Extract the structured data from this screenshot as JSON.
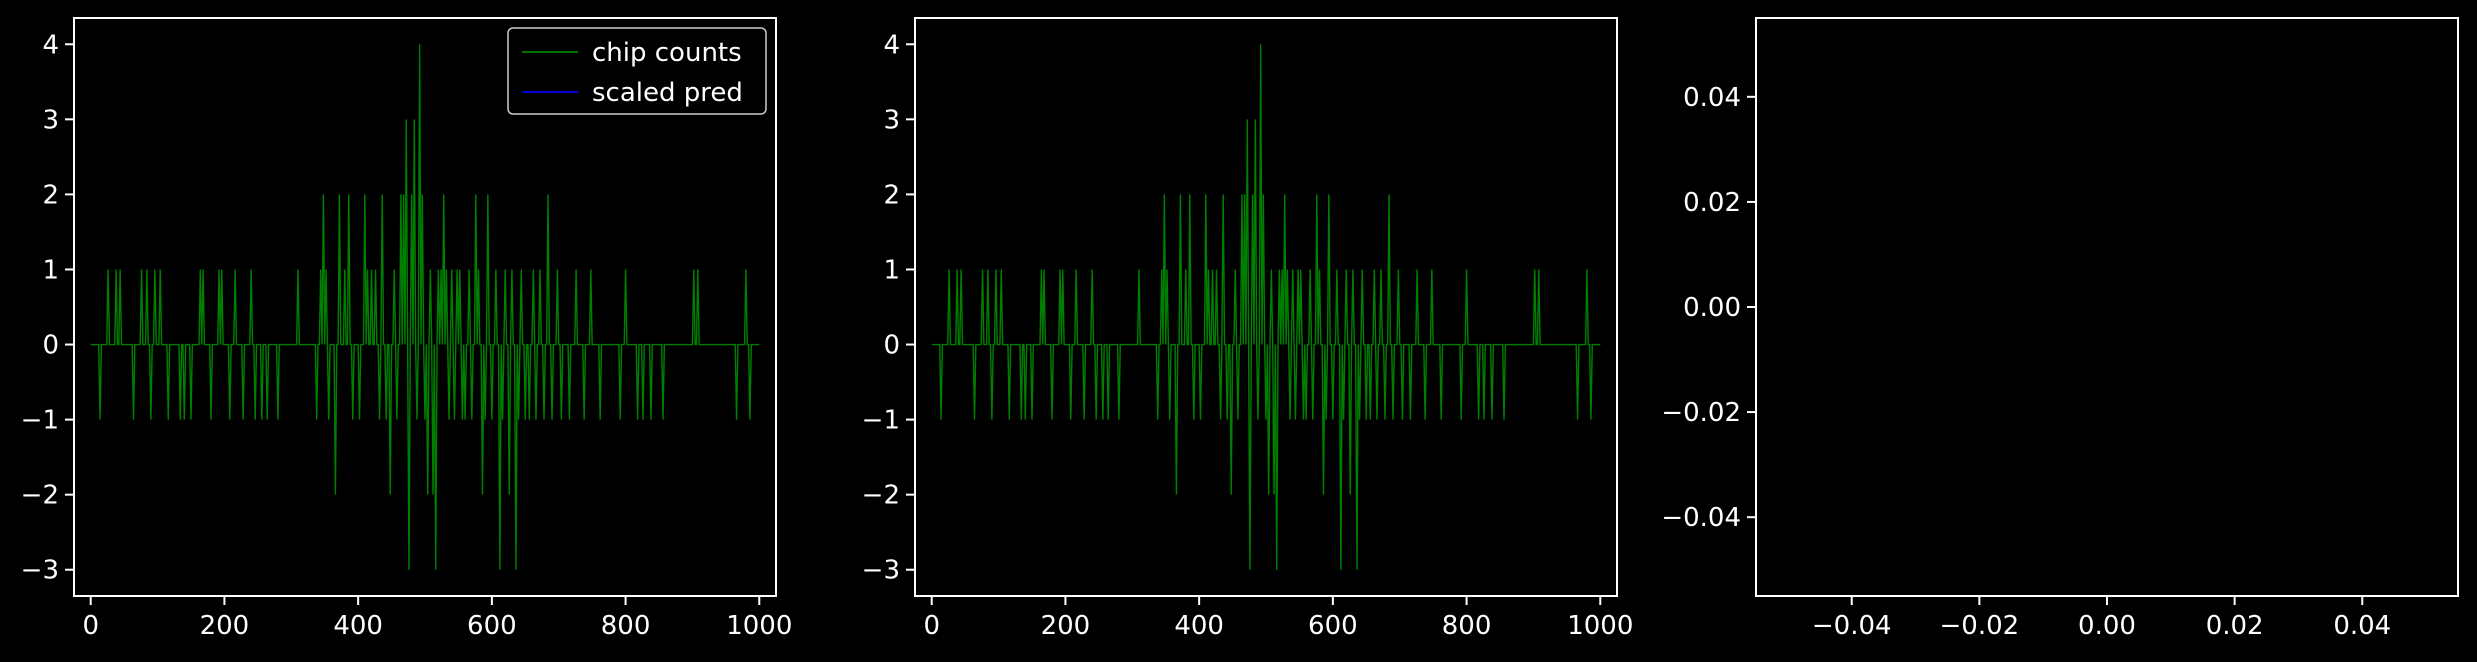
{
  "figure": {
    "background": "#000000",
    "foreground": "#ffffff"
  },
  "chart_data": [
    {
      "type": "line",
      "panel": "left",
      "xlim": [
        -25,
        1025
      ],
      "ylim": [
        -3.35,
        4.35
      ],
      "xticks": [
        0,
        200,
        400,
        600,
        800,
        1000
      ],
      "yticks": [
        -3,
        -2,
        -1,
        0,
        1,
        2,
        3,
        4
      ],
      "xtick_labels": [
        "0",
        "200",
        "400",
        "600",
        "800",
        "1000"
      ],
      "ytick_labels": [
        "−3",
        "−2",
        "−1",
        "0",
        "1",
        "2",
        "3",
        "4"
      ],
      "legend": {
        "position": "top-right",
        "entries": [
          "chip counts",
          "scaled pred"
        ]
      },
      "series": [
        {
          "name": "chip counts",
          "color": "#008000",
          "x_range": [
            0,
            1000
          ],
          "events": [
            [
              14,
              -1
            ],
            [
              26,
              1
            ],
            [
              38,
              1
            ],
            [
              44,
              1
            ],
            [
              64,
              -1
            ],
            [
              76,
              1
            ],
            [
              84,
              1
            ],
            [
              90,
              -1
            ],
            [
              96,
              1
            ],
            [
              104,
              1
            ],
            [
              116,
              -1
            ],
            [
              134,
              -1
            ],
            [
              140,
              -1
            ],
            [
              150,
              -1
            ],
            [
              164,
              1
            ],
            [
              168,
              1
            ],
            [
              180,
              -1
            ],
            [
              192,
              1
            ],
            [
              196,
              1
            ],
            [
              208,
              -1
            ],
            [
              216,
              1
            ],
            [
              228,
              -1
            ],
            [
              240,
              1
            ],
            [
              246,
              -1
            ],
            [
              256,
              -1
            ],
            [
              264,
              -1
            ],
            [
              280,
              -1
            ],
            [
              310,
              1
            ],
            [
              338,
              -1
            ],
            [
              344,
              1
            ],
            [
              348,
              2
            ],
            [
              352,
              1
            ],
            [
              356,
              -1
            ],
            [
              366,
              -2
            ],
            [
              372,
              2
            ],
            [
              380,
              1
            ],
            [
              386,
              2
            ],
            [
              392,
              -1
            ],
            [
              402,
              -1
            ],
            [
              410,
              2
            ],
            [
              414,
              1
            ],
            [
              420,
              1
            ],
            [
              426,
              1
            ],
            [
              432,
              -1
            ],
            [
              436,
              2
            ],
            [
              442,
              -1
            ],
            [
              448,
              -2
            ],
            [
              454,
              1
            ],
            [
              458,
              -1
            ],
            [
              464,
              2
            ],
            [
              468,
              2
            ],
            [
              472,
              3
            ],
            [
              476,
              -3
            ],
            [
              480,
              2
            ],
            [
              484,
              3
            ],
            [
              488,
              -1
            ],
            [
              492,
              4
            ],
            [
              496,
              2
            ],
            [
              500,
              -1
            ],
            [
              504,
              -2
            ],
            [
              508,
              1
            ],
            [
              512,
              -2
            ],
            [
              516,
              -3
            ],
            [
              520,
              1
            ],
            [
              524,
              1
            ],
            [
              528,
              2
            ],
            [
              532,
              1
            ],
            [
              536,
              -1
            ],
            [
              540,
              1
            ],
            [
              544,
              -1
            ],
            [
              548,
              1
            ],
            [
              552,
              1
            ],
            [
              556,
              -1
            ],
            [
              560,
              -1
            ],
            [
              566,
              1
            ],
            [
              570,
              -1
            ],
            [
              576,
              2
            ],
            [
              580,
              1
            ],
            [
              586,
              -2
            ],
            [
              590,
              -1
            ],
            [
              594,
              2
            ],
            [
              600,
              -1
            ],
            [
              606,
              1
            ],
            [
              612,
              -3
            ],
            [
              616,
              -1
            ],
            [
              620,
              1
            ],
            [
              626,
              -2
            ],
            [
              630,
              1
            ],
            [
              636,
              -3
            ],
            [
              640,
              -1
            ],
            [
              644,
              1
            ],
            [
              650,
              -1
            ],
            [
              656,
              -1
            ],
            [
              662,
              1
            ],
            [
              666,
              -1
            ],
            [
              672,
              1
            ],
            [
              678,
              -1
            ],
            [
              684,
              2
            ],
            [
              690,
              -1
            ],
            [
              698,
              1
            ],
            [
              704,
              -1
            ],
            [
              716,
              -1
            ],
            [
              726,
              1
            ],
            [
              738,
              -1
            ],
            [
              748,
              1
            ],
            [
              762,
              -1
            ],
            [
              792,
              -1
            ],
            [
              800,
              1
            ],
            [
              818,
              -1
            ],
            [
              826,
              -1
            ],
            [
              838,
              -1
            ],
            [
              856,
              -1
            ],
            [
              902,
              1
            ],
            [
              908,
              1
            ],
            [
              966,
              -1
            ],
            [
              980,
              1
            ],
            [
              986,
              -1
            ]
          ]
        },
        {
          "name": "scaled pred",
          "color": "#0000ff",
          "x": [],
          "y": []
        }
      ]
    },
    {
      "type": "line",
      "panel": "middle",
      "xlim": [
        -25,
        1025
      ],
      "ylim": [
        -3.35,
        4.35
      ],
      "xticks": [
        0,
        200,
        400,
        600,
        800,
        1000
      ],
      "yticks": [
        -3,
        -2,
        -1,
        0,
        1,
        2,
        3,
        4
      ],
      "xtick_labels": [
        "0",
        "200",
        "400",
        "600",
        "800",
        "1000"
      ],
      "ytick_labels": [
        "−3",
        "−2",
        "−1",
        "0",
        "1",
        "2",
        "3",
        "4"
      ],
      "series": [
        {
          "color": "#008000",
          "x_range": [
            0,
            1000
          ],
          "events": [
            [
              14,
              -1
            ],
            [
              26,
              1
            ],
            [
              38,
              1
            ],
            [
              44,
              1
            ],
            [
              64,
              -1
            ],
            [
              76,
              1
            ],
            [
              84,
              1
            ],
            [
              90,
              -1
            ],
            [
              96,
              1
            ],
            [
              104,
              1
            ],
            [
              116,
              -1
            ],
            [
              134,
              -1
            ],
            [
              140,
              -1
            ],
            [
              150,
              -1
            ],
            [
              164,
              1
            ],
            [
              168,
              1
            ],
            [
              180,
              -1
            ],
            [
              192,
              1
            ],
            [
              196,
              1
            ],
            [
              208,
              -1
            ],
            [
              216,
              1
            ],
            [
              228,
              -1
            ],
            [
              240,
              1
            ],
            [
              246,
              -1
            ],
            [
              256,
              -1
            ],
            [
              264,
              -1
            ],
            [
              280,
              -1
            ],
            [
              310,
              1
            ],
            [
              338,
              -1
            ],
            [
              344,
              1
            ],
            [
              348,
              2
            ],
            [
              352,
              1
            ],
            [
              356,
              -1
            ],
            [
              366,
              -2
            ],
            [
              372,
              2
            ],
            [
              380,
              1
            ],
            [
              386,
              2
            ],
            [
              392,
              -1
            ],
            [
              402,
              -1
            ],
            [
              410,
              2
            ],
            [
              414,
              1
            ],
            [
              420,
              1
            ],
            [
              426,
              1
            ],
            [
              432,
              -1
            ],
            [
              436,
              2
            ],
            [
              442,
              -1
            ],
            [
              448,
              -2
            ],
            [
              454,
              1
            ],
            [
              458,
              -1
            ],
            [
              464,
              2
            ],
            [
              468,
              2
            ],
            [
              472,
              3
            ],
            [
              476,
              -3
            ],
            [
              480,
              2
            ],
            [
              484,
              3
            ],
            [
              488,
              -1
            ],
            [
              492,
              4
            ],
            [
              496,
              2
            ],
            [
              500,
              -1
            ],
            [
              504,
              -2
            ],
            [
              508,
              1
            ],
            [
              512,
              -2
            ],
            [
              516,
              -3
            ],
            [
              520,
              1
            ],
            [
              524,
              1
            ],
            [
              528,
              2
            ],
            [
              532,
              1
            ],
            [
              536,
              -1
            ],
            [
              540,
              1
            ],
            [
              544,
              -1
            ],
            [
              548,
              1
            ],
            [
              552,
              1
            ],
            [
              556,
              -1
            ],
            [
              560,
              -1
            ],
            [
              566,
              1
            ],
            [
              570,
              -1
            ],
            [
              576,
              2
            ],
            [
              580,
              1
            ],
            [
              586,
              -2
            ],
            [
              590,
              -1
            ],
            [
              594,
              2
            ],
            [
              600,
              -1
            ],
            [
              606,
              1
            ],
            [
              612,
              -3
            ],
            [
              616,
              -1
            ],
            [
              620,
              1
            ],
            [
              626,
              -2
            ],
            [
              630,
              1
            ],
            [
              636,
              -3
            ],
            [
              640,
              -1
            ],
            [
              644,
              1
            ],
            [
              650,
              -1
            ],
            [
              656,
              -1
            ],
            [
              662,
              1
            ],
            [
              666,
              -1
            ],
            [
              672,
              1
            ],
            [
              678,
              -1
            ],
            [
              684,
              2
            ],
            [
              690,
              -1
            ],
            [
              698,
              1
            ],
            [
              704,
              -1
            ],
            [
              716,
              -1
            ],
            [
              726,
              1
            ],
            [
              738,
              -1
            ],
            [
              748,
              1
            ],
            [
              762,
              -1
            ],
            [
              792,
              -1
            ],
            [
              800,
              1
            ],
            [
              818,
              -1
            ],
            [
              826,
              -1
            ],
            [
              838,
              -1
            ],
            [
              856,
              -1
            ],
            [
              902,
              1
            ],
            [
              908,
              1
            ],
            [
              966,
              -1
            ],
            [
              980,
              1
            ],
            [
              986,
              -1
            ]
          ]
        }
      ]
    },
    {
      "type": "line",
      "panel": "right",
      "xlim": [
        -0.055,
        0.055
      ],
      "ylim": [
        -0.055,
        0.055
      ],
      "xticks": [
        -0.04,
        -0.02,
        0,
        0.02,
        0.04
      ],
      "yticks": [
        -0.04,
        -0.02,
        0,
        0.02,
        0.04
      ],
      "xtick_labels": [
        "−0.04",
        "−0.02",
        "0.00",
        "0.02",
        "0.04"
      ],
      "ytick_labels": [
        "−0.04",
        "−0.02",
        "0.00",
        "0.02",
        "0.04"
      ],
      "series": []
    }
  ]
}
